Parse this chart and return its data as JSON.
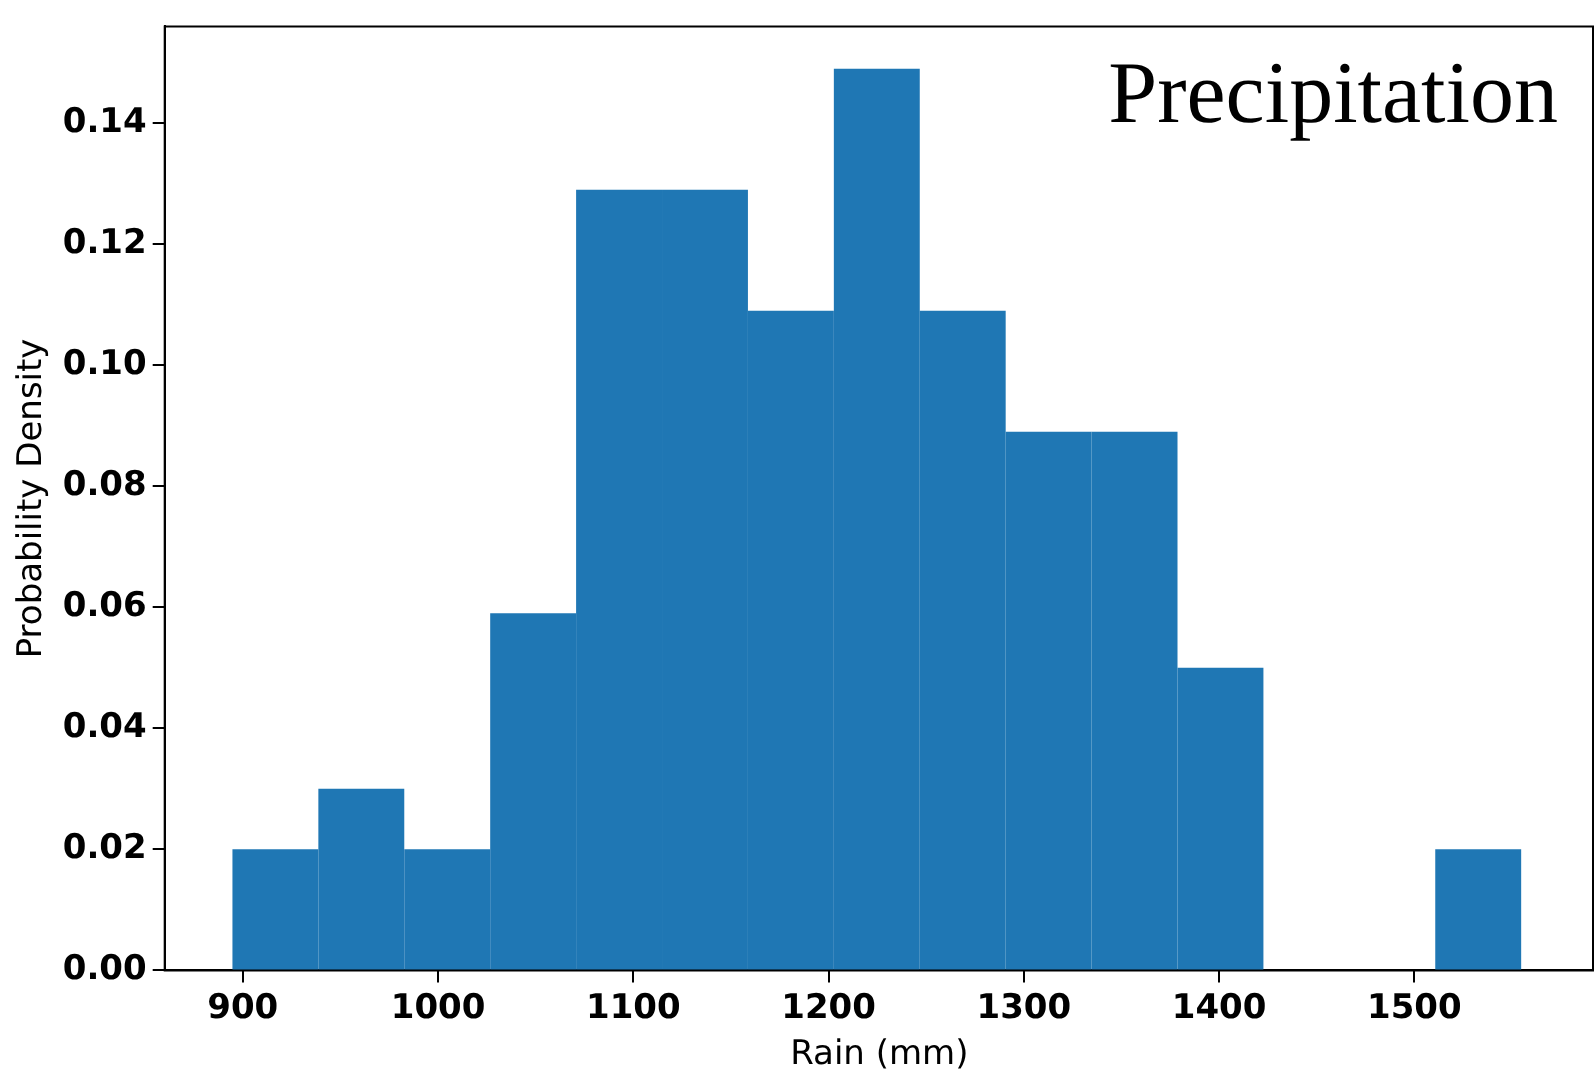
{
  "chart_data": {
    "type": "histogram",
    "title": "Precipitation",
    "xlabel": "Rain (mm)",
    "ylabel": "Probability Density",
    "bins": [
      894.7,
      938.7,
      982.7,
      1026.7,
      1070.7,
      1114.7,
      1158.7,
      1202.7,
      1246.7,
      1290.7,
      1334.7,
      1378.7,
      1422.7,
      1466.7,
      1510.7,
      1554.7
    ],
    "values": [
      0.02,
      0.03,
      0.02,
      0.059,
      0.129,
      0.129,
      0.109,
      0.149,
      0.109,
      0.089,
      0.089,
      0.05,
      0,
      0,
      0.02
    ],
    "color": "#1f77b4",
    "xlim": [
      860,
      1592
    ],
    "ylim": [
      0,
      0.156
    ],
    "xticks": [
      900,
      1000,
      1100,
      1200,
      1300,
      1400,
      1500
    ],
    "yticks": [
      {
        "value": 0,
        "label": "0.00"
      },
      {
        "value": 0.02,
        "label": "0.02"
      },
      {
        "value": 0.04,
        "label": "0.04"
      },
      {
        "value": 0.06,
        "label": "0.06"
      },
      {
        "value": 0.08,
        "label": "0.08"
      },
      {
        "value": 0.1,
        "label": "0.10"
      },
      {
        "value": 0.12,
        "label": "0.12"
      },
      {
        "value": 0.14,
        "label": "0.14"
      }
    ],
    "grid": false,
    "legend": false
  }
}
